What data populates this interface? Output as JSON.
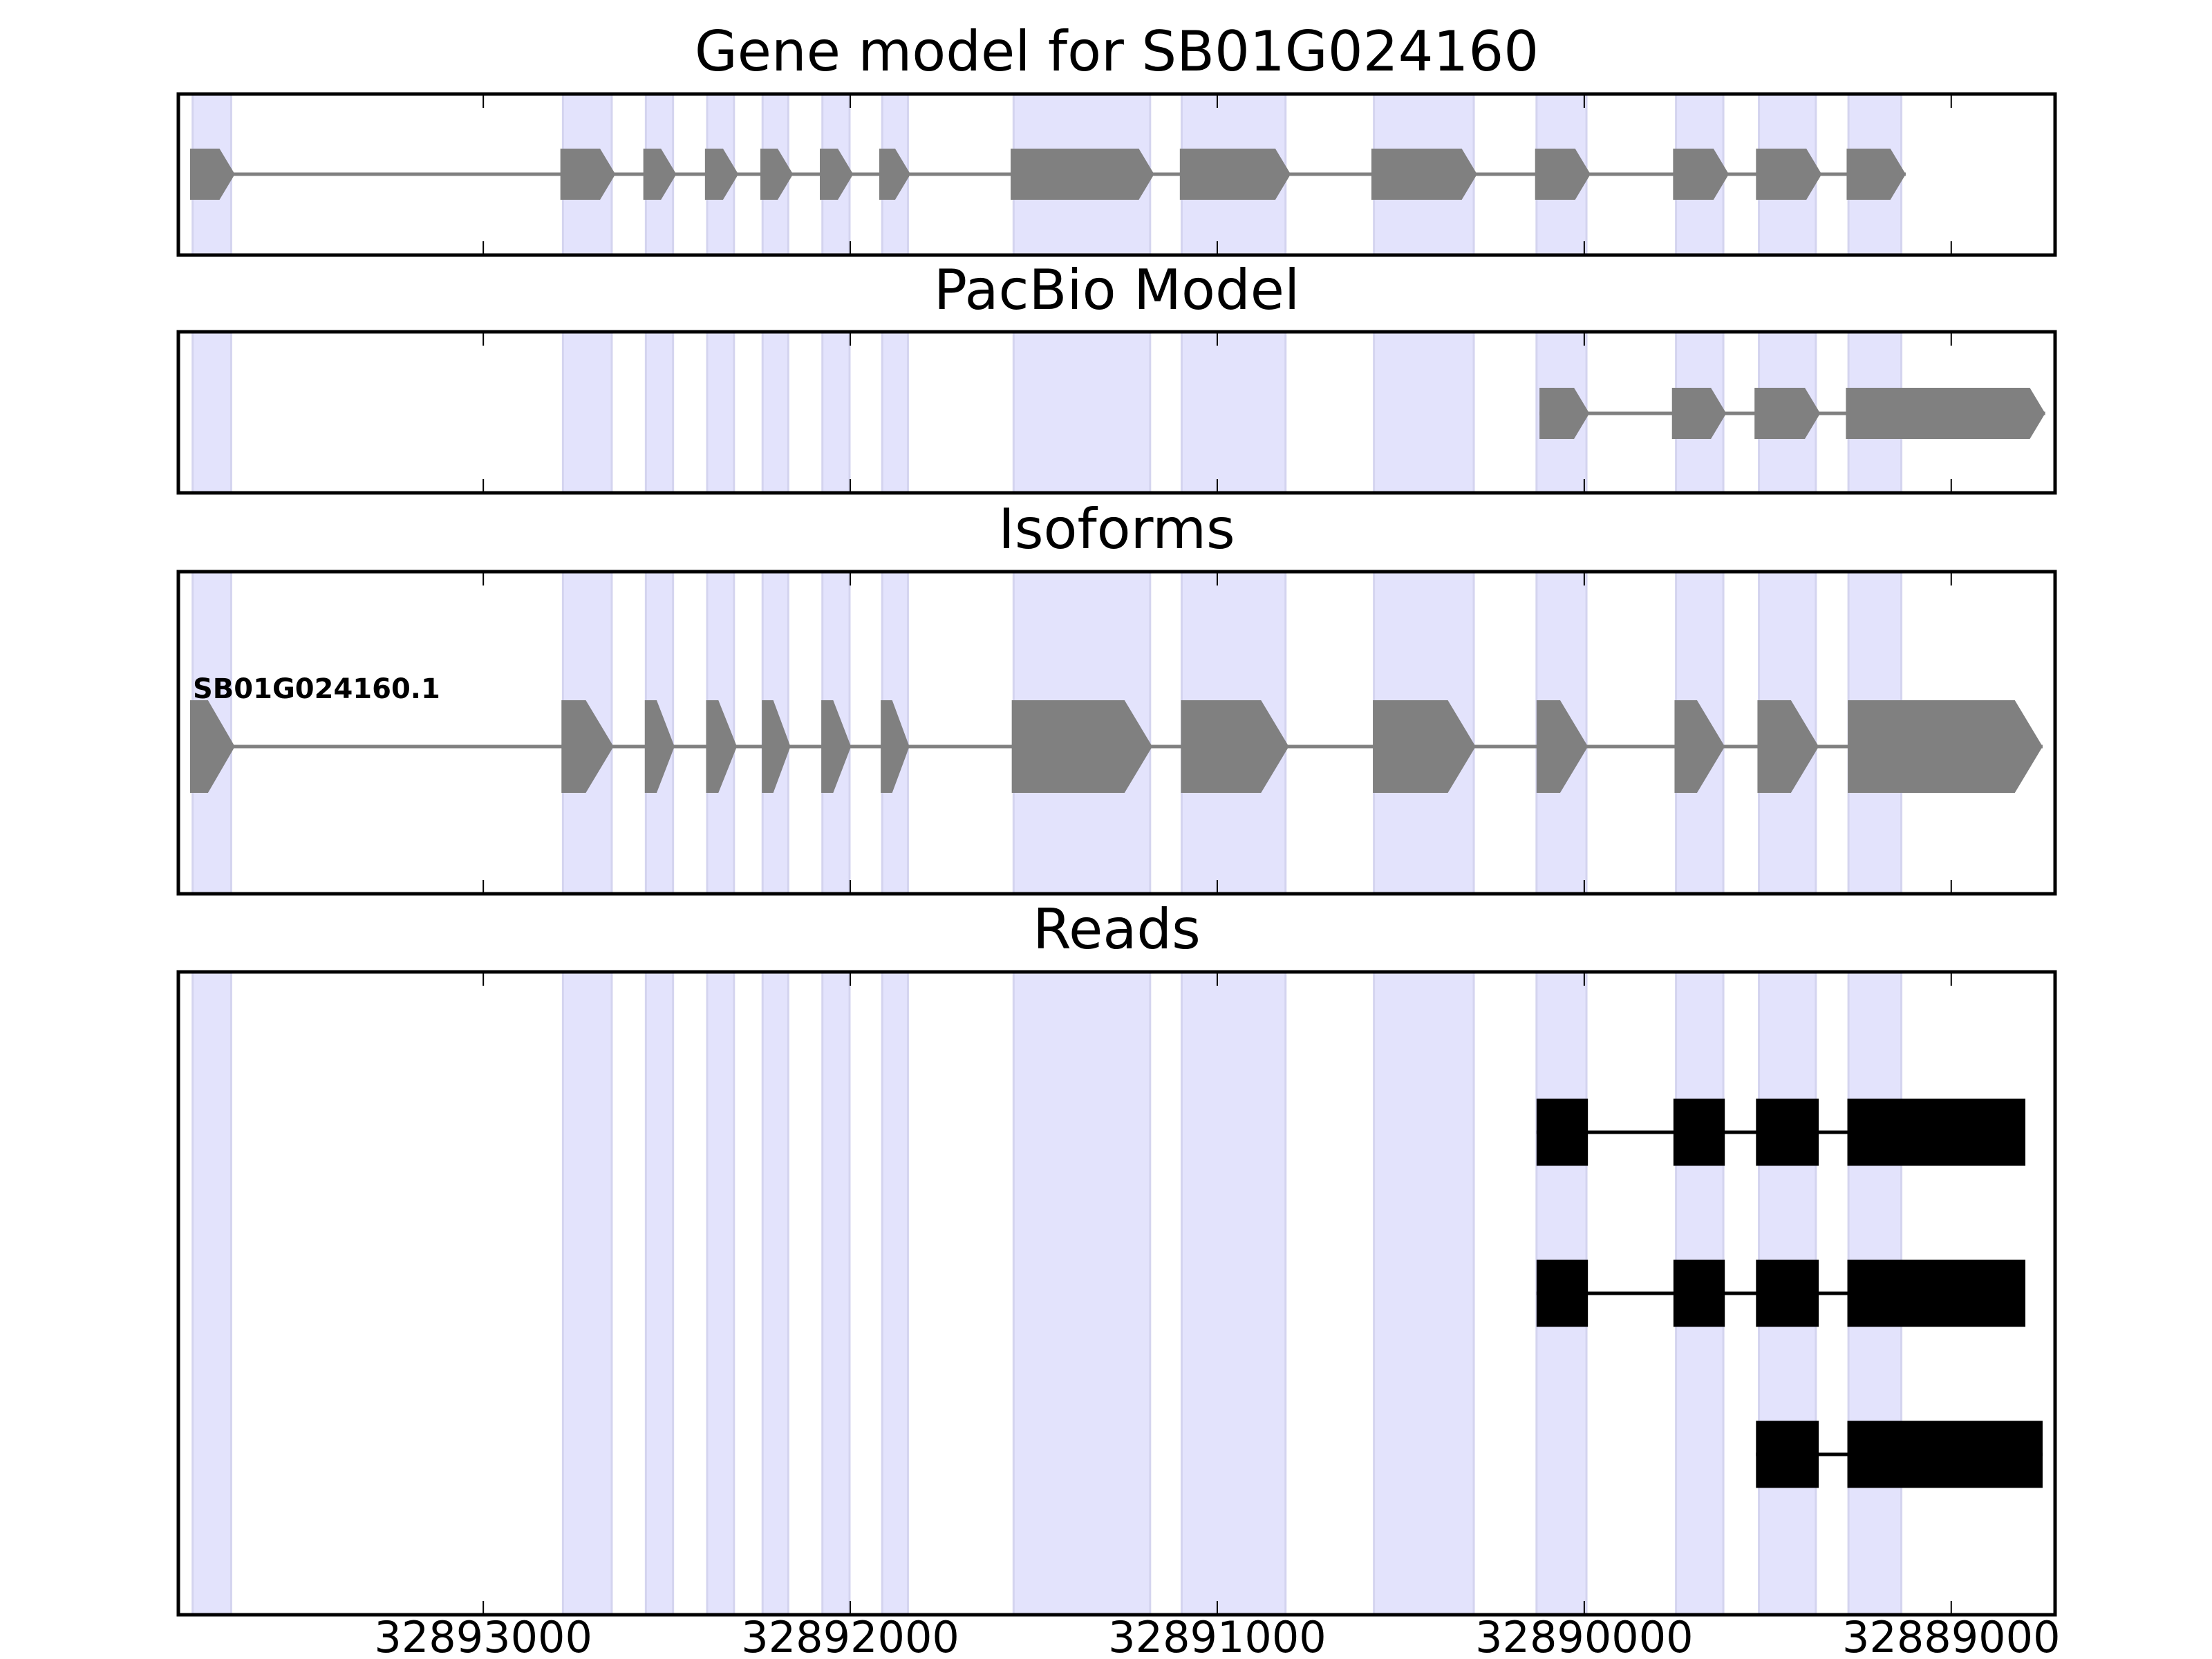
{
  "chart_data": {
    "type": "gene-structure",
    "xlim": [
      32893831,
      32888717
    ],
    "x_reversed": true,
    "xticks": [
      32893000,
      32892000,
      32891000,
      32890000,
      32889000
    ],
    "xtick_labels": [
      "32893000",
      "32892000",
      "32891000",
      "32890000",
      "32889000"
    ],
    "highlight_color": "#e3e3fc",
    "highlight_regions": [
      [
        32893792,
        32893687
      ],
      [
        32892783,
        32892650
      ],
      [
        32892557,
        32892483
      ],
      [
        32892390,
        32892317
      ],
      [
        32892239,
        32892169
      ],
      [
        32892076,
        32892002
      ],
      [
        32891913,
        32891843
      ],
      [
        32891555,
        32891183
      ],
      [
        32891097,
        32890814
      ],
      [
        32890573,
        32890301
      ],
      [
        32890130,
        32889994
      ],
      [
        32889750,
        32889621
      ],
      [
        32889524,
        32889369
      ],
      [
        32889280,
        32889136
      ]
    ],
    "panels": [
      {
        "title": "Gene model for SB01G024160",
        "style": "arrow",
        "color": "#808080",
        "tracks": [
          {
            "label": "",
            "exons": [
              [
                32893799,
                32893677
              ],
              [
                32892790,
                32892640
              ],
              [
                32892564,
                32892474
              ],
              [
                32892396,
                32892305
              ],
              [
                32892245,
                32892156
              ],
              [
                32892083,
                32891992
              ],
              [
                32891921,
                32891836
              ],
              [
                32891563,
                32891172
              ],
              [
                32891102,
                32890800
              ],
              [
                32890580,
                32890292
              ],
              [
                32890134,
                32889983
              ],
              [
                32889758,
                32889606
              ],
              [
                32889532,
                32889353
              ],
              [
                32889285,
                32889124
              ]
            ]
          }
        ]
      },
      {
        "title": "PacBio Model",
        "style": "arrow",
        "color": "#808080",
        "tracks": [
          {
            "label": "",
            "exons": [
              [
                32890122,
                32889986
              ],
              [
                32889761,
                32889613
              ],
              [
                32889536,
                32889357
              ],
              [
                32889287,
                32888744
              ]
            ]
          }
        ]
      },
      {
        "title": "Isoforms",
        "style": "arrow",
        "color": "#808080",
        "tracks": [
          {
            "label": "SB01G024160.1",
            "exons": [
              [
                32893799,
                32893677
              ],
              [
                32892787,
                32892645
              ],
              [
                32892560,
                32892479
              ],
              [
                32892393,
                32892309
              ],
              [
                32892241,
                32892163
              ],
              [
                32892079,
                32891998
              ],
              [
                32891917,
                32891839
              ],
              [
                32891560,
                32891177
              ],
              [
                32891099,
                32890805
              ],
              [
                32890576,
                32890296
              ],
              [
                32890130,
                32889990
              ],
              [
                32889754,
                32889617
              ],
              [
                32889528,
                32889361
              ],
              [
                32889282,
                32888751
              ]
            ]
          }
        ]
      },
      {
        "title": "Reads",
        "style": "box",
        "color": "#000000",
        "tracks": [
          {
            "label": "",
            "exons": [
              [
                32890130,
                32889990
              ],
              [
                32889757,
                32889617
              ],
              [
                32889532,
                32889361
              ],
              [
                32889283,
                32888798
              ]
            ]
          },
          {
            "label": "",
            "exons": [
              [
                32890130,
                32889990
              ],
              [
                32889757,
                32889617
              ],
              [
                32889532,
                32889361
              ],
              [
                32889283,
                32888798
              ]
            ]
          },
          {
            "label": "",
            "exons": [
              [
                32889532,
                32889361
              ],
              [
                32889283,
                32888751
              ]
            ]
          }
        ]
      }
    ]
  }
}
